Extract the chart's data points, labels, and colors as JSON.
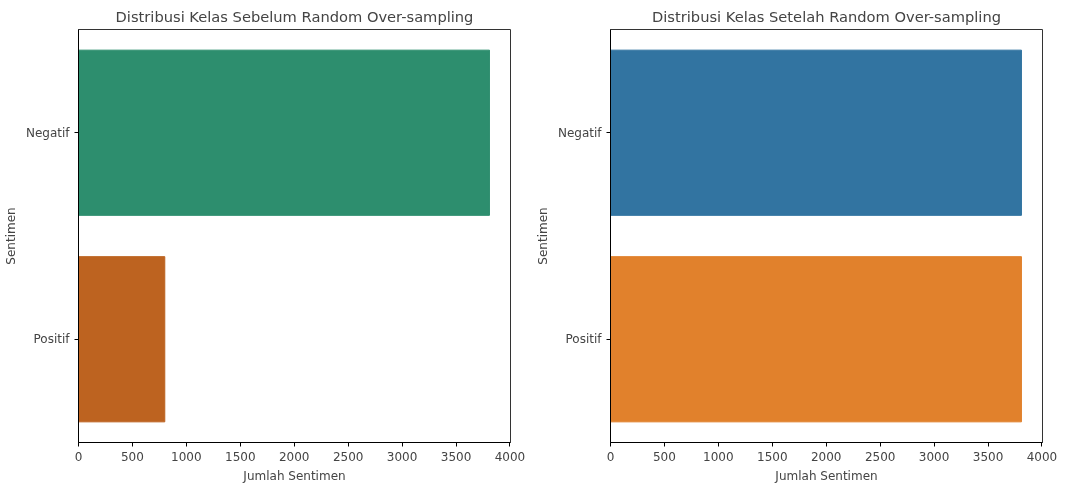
{
  "chart_data": [
    {
      "type": "bar",
      "orientation": "horizontal",
      "title": "Distribusi Kelas Sebelum Random Over-sampling",
      "xlabel": "Jumlah Sentimen",
      "ylabel": "Sentimen",
      "categories": [
        "Negatif",
        "Positif"
      ],
      "values": [
        3810,
        800
      ],
      "colors": [
        "#2d8e6e",
        "#bd6320"
      ],
      "xlim": [
        0,
        4005
      ],
      "xticks": [
        0,
        500,
        1000,
        1500,
        2000,
        2500,
        3000,
        3500,
        4000
      ],
      "grid": false
    },
    {
      "type": "bar",
      "orientation": "horizontal",
      "title": "Distribusi Kelas Setelah Random Over-sampling",
      "xlabel": "Jumlah Sentimen",
      "ylabel": "Sentimen",
      "categories": [
        "Negatif",
        "Positif"
      ],
      "values": [
        3810,
        3810
      ],
      "colors": [
        "#3274a1",
        "#e1812c"
      ],
      "xlim": [
        0,
        4005
      ],
      "xticks": [
        0,
        500,
        1000,
        1500,
        2000,
        2500,
        3000,
        3500,
        4000
      ],
      "grid": false
    }
  ]
}
